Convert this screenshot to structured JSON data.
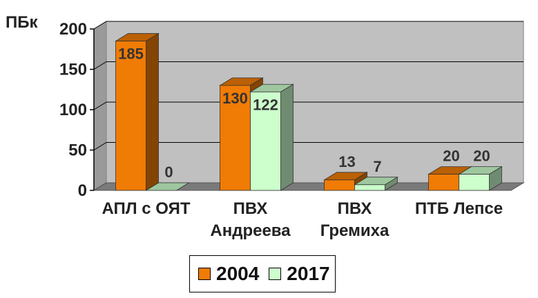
{
  "chart_data": {
    "type": "bar",
    "unit_label": "ПБк",
    "categories": [
      [
        "АПЛ с ОЯТ"
      ],
      [
        "ПВХ",
        "Андреева"
      ],
      [
        "ПВХ",
        "Гремиха"
      ],
      [
        "ПТБ Лепсе"
      ]
    ],
    "series": [
      {
        "name": "2004",
        "values": [
          185,
          130,
          13,
          20
        ],
        "color": "#f07b05"
      },
      {
        "name": "2017",
        "values": [
          0,
          122,
          7,
          20
        ],
        "color": "#ccffcc"
      }
    ],
    "ylim": [
      0,
      200
    ],
    "yticks": [
      0,
      50,
      100,
      150,
      200
    ],
    "grid": true,
    "legend_position": "bottom",
    "three_d": true
  }
}
